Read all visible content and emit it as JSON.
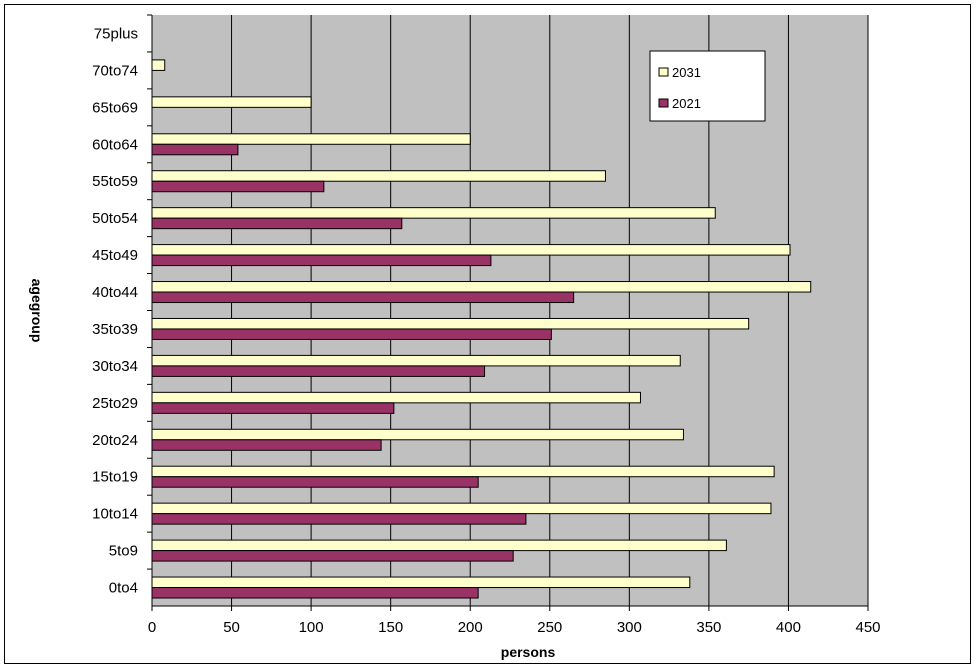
{
  "chart_data": {
    "type": "bar",
    "orientation": "horizontal",
    "title": "",
    "xlabel": "persons",
    "ylabel": "agegroup",
    "xlim": [
      0,
      450
    ],
    "xticks": [
      "0",
      "50",
      "100",
      "150",
      "200",
      "250",
      "300",
      "350",
      "400",
      "450"
    ],
    "categories": [
      "0to4",
      "5to9",
      "10to14",
      "15to19",
      "20to24",
      "25to29",
      "30to34",
      "35to39",
      "40to44",
      "45to49",
      "50to54",
      "55to59",
      "60to64",
      "65to69",
      "70to74",
      "75plus"
    ],
    "series": [
      {
        "name": "2031",
        "color": "#ffffcc",
        "values": [
          338,
          361,
          389,
          391,
          334,
          307,
          332,
          375,
          414,
          401,
          354,
          285,
          200,
          100,
          8,
          0
        ]
      },
      {
        "name": "2021",
        "color": "#993366",
        "values": [
          205,
          227,
          235,
          205,
          144,
          152,
          209,
          251,
          265,
          213,
          157,
          108,
          54,
          0,
          0,
          0
        ]
      }
    ],
    "plot_background": "#c0c0c0",
    "grid": true,
    "legend_position": "top-right"
  }
}
